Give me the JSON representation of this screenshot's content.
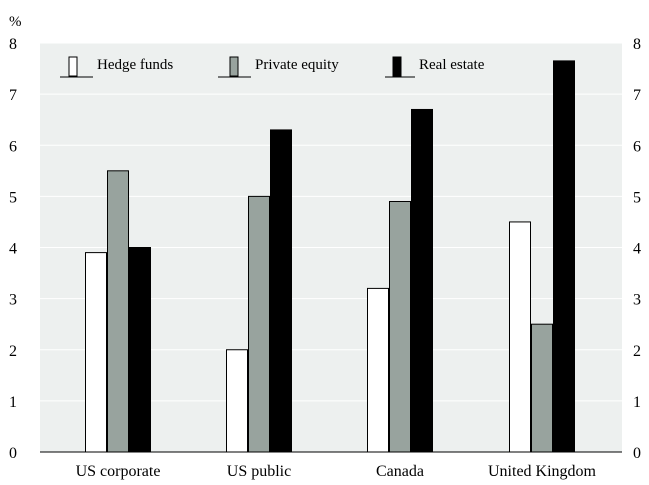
{
  "chart_data": {
    "type": "bar",
    "unit_label": "%",
    "categories": [
      "US corporate",
      "US public",
      "Canada",
      "United Kingdom"
    ],
    "series": [
      {
        "name": "Hedge funds",
        "values": [
          3.9,
          2.0,
          3.2,
          4.5
        ],
        "color": "#ffffff"
      },
      {
        "name": "Private equity",
        "values": [
          5.5,
          5.0,
          4.9,
          2.5
        ],
        "color": "#98a39e"
      },
      {
        "name": "Real estate",
        "values": [
          4.0,
          6.3,
          6.7,
          7.65
        ],
        "color": "#000000"
      }
    ],
    "ylim": [
      0,
      8
    ],
    "yticks": [
      "0",
      "1",
      "2",
      "3",
      "4",
      "5",
      "6",
      "7",
      "8"
    ],
    "grid": true,
    "legend_position": "top-left",
    "colors": {
      "plot_background": "#edf0ef",
      "gridline": "#ffffff",
      "bar_outline": "#000000"
    }
  }
}
